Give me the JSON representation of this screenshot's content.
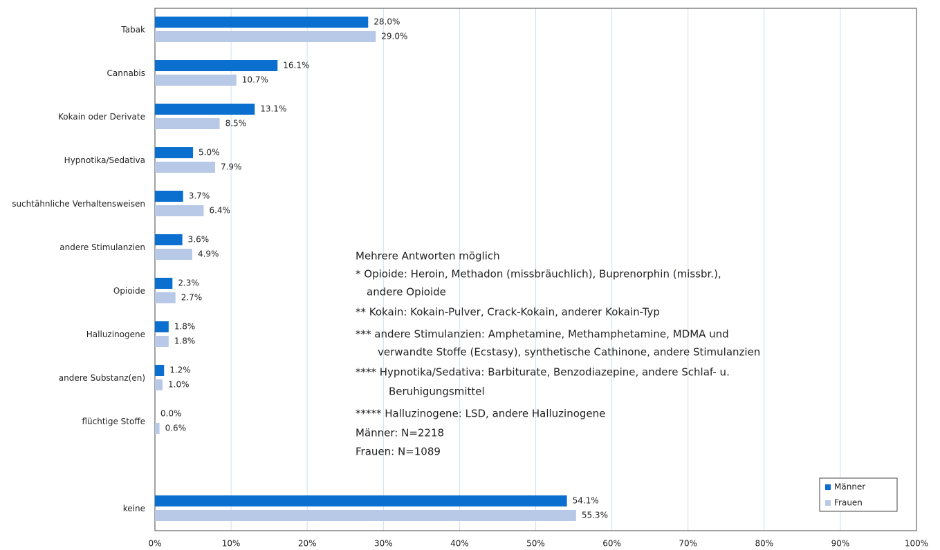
{
  "chart_data": {
    "type": "hbar",
    "categories": [
      "Tabak",
      "Cannabis",
      "Kokain oder Derivate",
      "Hypnotika/Sedativa",
      "suchtähnliche Verhaltensweisen",
      "andere Stimulanzien",
      "Opioide",
      "Halluzinogene",
      "andere Substanz(en)",
      "flüchtige Stoffe",
      null,
      "keine"
    ],
    "series": [
      {
        "name": "Männer",
        "color": "#0a6fcf",
        "values": [
          28.0,
          16.1,
          13.1,
          5.0,
          3.7,
          3.6,
          2.3,
          1.8,
          1.2,
          0.0,
          null,
          54.1
        ],
        "value_labels": [
          "28.0%",
          "16.1%",
          "13.1%",
          "5.0%",
          "3.7%",
          "3.6%",
          "2.3%",
          "1.8%",
          "1.2%",
          "0.0%",
          null,
          "54.1%"
        ]
      },
      {
        "name": "Frauen",
        "color": "#b7c9e6",
        "values": [
          29.0,
          10.7,
          8.5,
          7.9,
          6.4,
          4.9,
          2.7,
          1.8,
          1.0,
          0.6,
          null,
          55.3
        ],
        "value_labels": [
          "29.0%",
          "10.7%",
          "8.5%",
          "7.9%",
          "6.4%",
          "4.9%",
          "2.7%",
          "1.8%",
          "1.0%",
          "0.6%",
          null,
          "55.3%"
        ]
      }
    ],
    "xlim": [
      0,
      100
    ],
    "xticks": [
      {
        "value": 0,
        "label": "0%"
      },
      {
        "value": 10,
        "label": "10%"
      },
      {
        "value": 20,
        "label": "20%"
      },
      {
        "value": 30,
        "label": "30%"
      },
      {
        "value": 40,
        "label": "40%"
      },
      {
        "value": 50,
        "label": "50%"
      },
      {
        "value": 60,
        "label": "60%"
      },
      {
        "value": 70,
        "label": "70%"
      },
      {
        "value": 80,
        "label": "80%"
      },
      {
        "value": 90,
        "label": "90%"
      },
      {
        "value": 100,
        "label": "100%"
      }
    ],
    "grid": true,
    "legend": "lower right",
    "annotations": [
      "Mehrere Antworten möglich",
      "* Opioide: Heroin, Methadon (missbräuchlich), Buprenorphin (missbr.),",
      "andere Opioide",
      "** Kokain: Kokain-Pulver, Crack-Kokain, anderer Kokain-Typ",
      "*** andere Stimulanzien: Amphetamine, Methamphetamine, MDMA und",
      "verwandte Stoffe (Ecstasy), synthetische Cathinone, andere Stimulanzien",
      "**** Hypnotika/Sedativa: Barbiturate, Benzodiazepine, andere Schlaf- u.",
      "Beruhigungsmittel",
      "***** Halluzinogene: LSD, andere Halluzinogene",
      "Männer: N=2218",
      "Frauen: N=1089"
    ]
  }
}
